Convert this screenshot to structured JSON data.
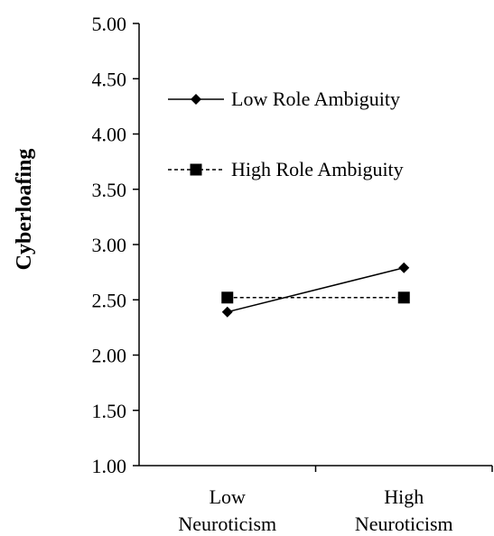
{
  "chart_data": {
    "type": "line",
    "categories": [
      [
        "Low",
        "Neuroticism"
      ],
      [
        "High",
        "Neuroticism"
      ]
    ],
    "ylabel": "Cyberloafing",
    "xlabel": "",
    "ylim": [
      1.0,
      5.0
    ],
    "yticks": [
      "1.00",
      "1.50",
      "2.00",
      "2.50",
      "3.00",
      "3.50",
      "4.00",
      "4.50",
      "5.00"
    ],
    "legend_position": "upper-left",
    "series": [
      {
        "name": "Low Role Ambiguity",
        "values": [
          2.39,
          2.79
        ],
        "marker": "diamond",
        "line": "solid",
        "color": "#000000"
      },
      {
        "name": "High Role Ambiguity",
        "values": [
          2.52,
          2.52
        ],
        "marker": "square",
        "line": "dashed",
        "color": "#000000"
      }
    ]
  }
}
